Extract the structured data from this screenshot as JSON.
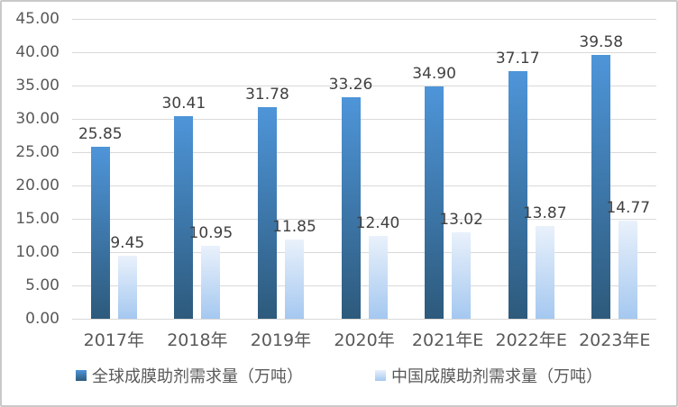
{
  "chart_data": {
    "type": "bar",
    "title": "",
    "xlabel": "",
    "ylabel": "",
    "categories": [
      "2017年",
      "2018年",
      "2019年",
      "2020年",
      "2021年E",
      "2022年E",
      "2023年E"
    ],
    "series": [
      {
        "id": "global",
        "name": "全球成膜助剂需求量（万吨）",
        "values": [
          25.85,
          30.41,
          31.78,
          33.26,
          34.9,
          37.17,
          39.58
        ],
        "color_top": "#4E95D9",
        "color_bottom": "#2D5A7C"
      },
      {
        "id": "china",
        "name": "中国成膜助剂需求量（万吨）",
        "values": [
          9.45,
          10.95,
          11.85,
          12.4,
          13.02,
          13.87,
          14.77
        ],
        "color_top": "#E9F1FB",
        "color_bottom": "#A5C8F0"
      }
    ],
    "ylim": [
      0,
      45
    ],
    "ytick_step": 5,
    "ytick_label_decimals": 2,
    "value_label_decimals": 2,
    "grid": true,
    "legend_position": "bottom",
    "colors": {
      "gridline": "#D9D9D9",
      "axis_text": "#595959",
      "data_label": "#404040",
      "frame_border": "#C9C9C9",
      "background": "#FFFFFF"
    }
  }
}
